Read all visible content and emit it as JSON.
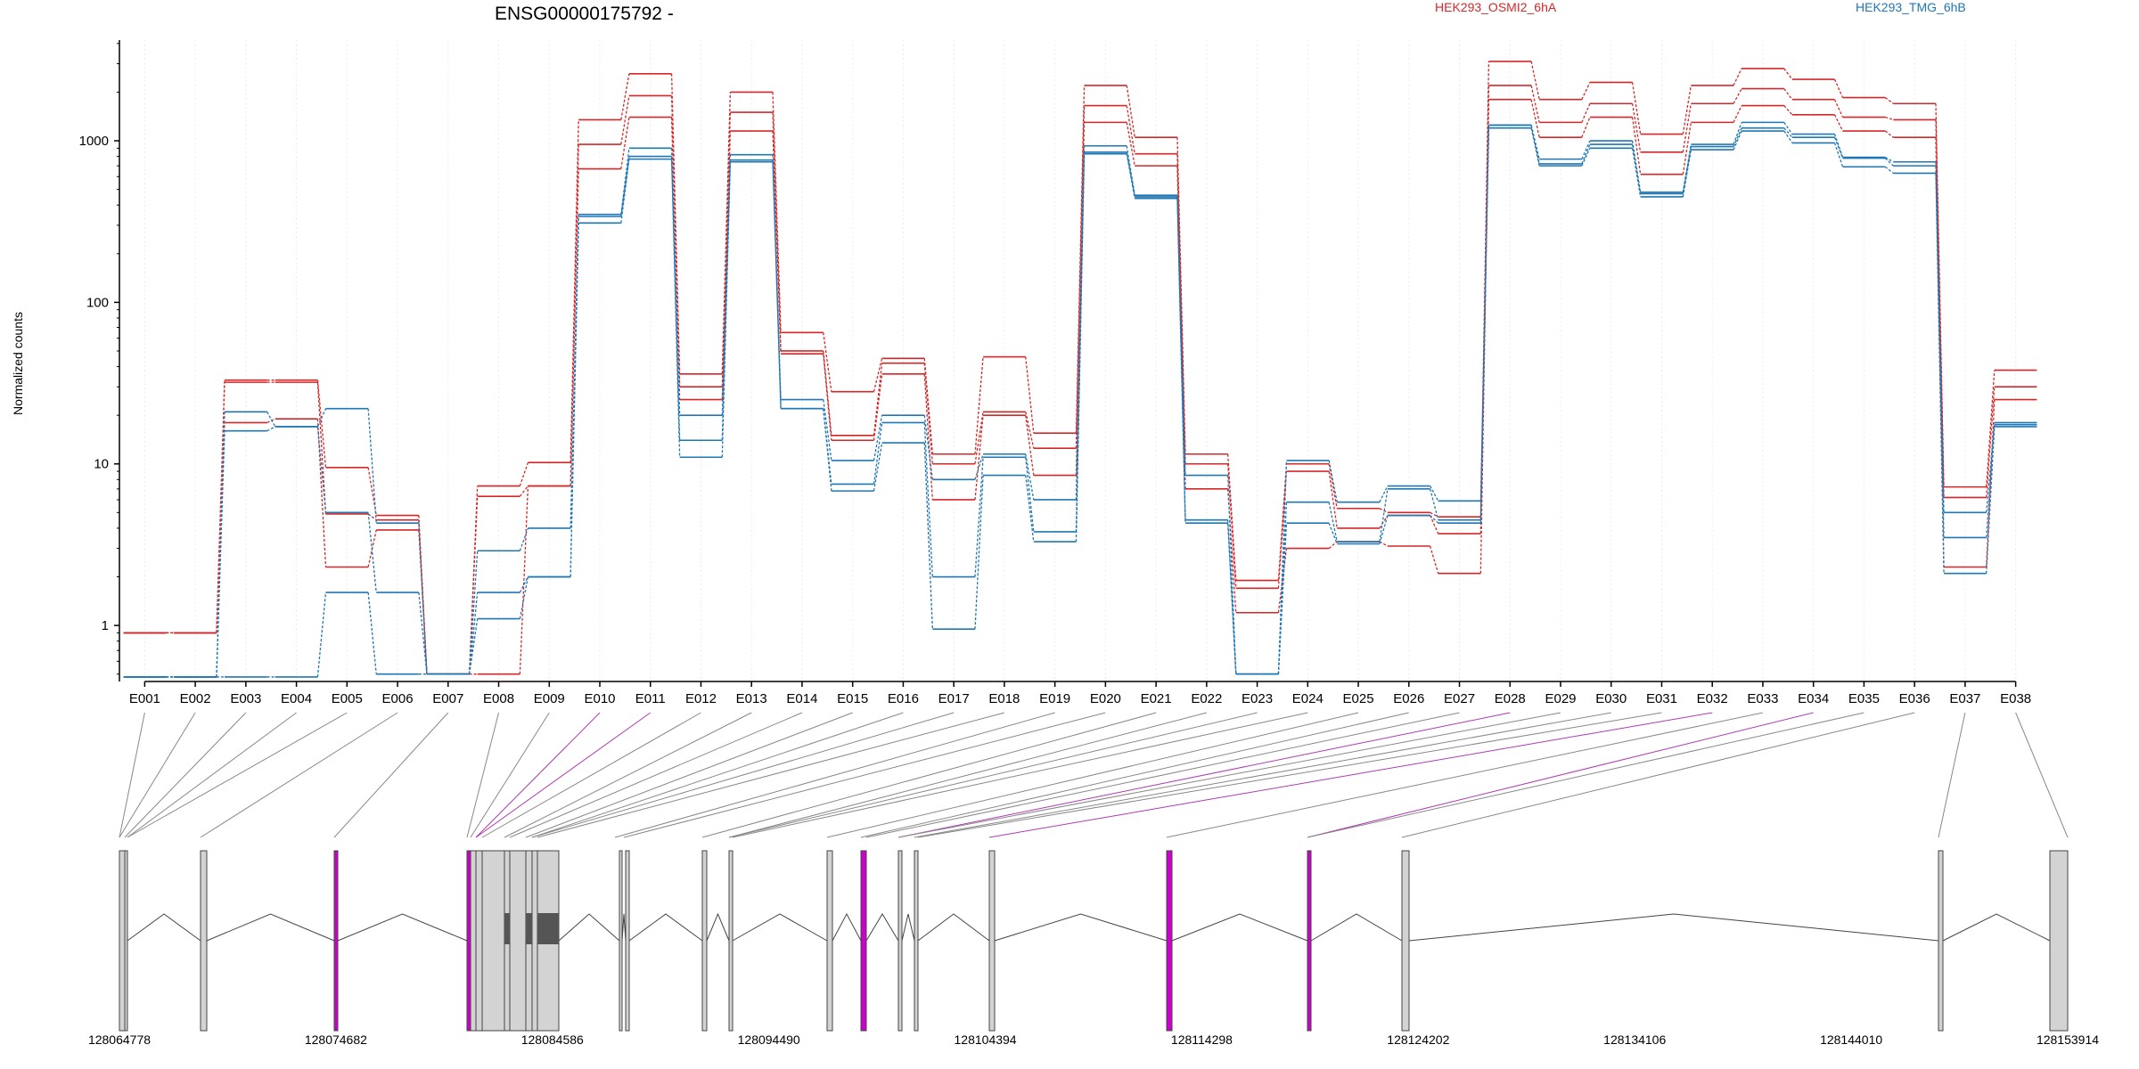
{
  "chart_data": {
    "type": "line",
    "title": "ENSG00000175792 -",
    "ylabel": "Normalized counts",
    "xlabel": "",
    "yscale": "log",
    "ylim": [
      0.45,
      4200
    ],
    "yticks": [
      1,
      10,
      100,
      1000
    ],
    "ytick_labels": [
      "1",
      "10",
      "100",
      "1000"
    ],
    "grid": "vertical dotted",
    "legend_placement": "top-right",
    "categories": [
      "E001",
      "E002",
      "E003",
      "E004",
      "E005",
      "E006",
      "E007",
      "E008",
      "E009",
      "E010",
      "E011",
      "E012",
      "E013",
      "E014",
      "E015",
      "E016",
      "E017",
      "E018",
      "E019",
      "E020",
      "E021",
      "E022",
      "E023",
      "E024",
      "E025",
      "E026",
      "E027",
      "E028",
      "E029",
      "E030",
      "E031",
      "E032",
      "E033",
      "E034",
      "E035",
      "E036",
      "E037",
      "E038"
    ],
    "series": [
      {
        "name": "HEK293_OSMI2_6hA",
        "color": "#d62728",
        "values": [
          0.9,
          0.9,
          33,
          33,
          9.5,
          4.8,
          0.5,
          7.3,
          10.2,
          1350,
          2600,
          36,
          2000,
          65,
          28,
          45,
          11.5,
          46,
          15.5,
          2200,
          1050,
          11.5,
          1.9,
          10,
          5.3,
          5,
          4.7,
          3100,
          1800,
          2300,
          1100,
          2200,
          2800,
          2400,
          1850,
          1700,
          7.2,
          38
        ]
      },
      {
        "name": "",
        "color": "#d62728",
        "values": [
          0.9,
          0.9,
          32,
          32,
          4.9,
          4.5,
          0.5,
          6.3,
          7.3,
          950,
          1900,
          30,
          1500,
          50,
          15,
          42,
          10,
          21,
          12.5,
          1650,
          830,
          10,
          1.7,
          9,
          4,
          4.8,
          3.7,
          2200,
          1300,
          1700,
          850,
          1700,
          2100,
          1800,
          1400,
          1350,
          6.2,
          30
        ]
      },
      {
        "name": "",
        "color": "#d62728",
        "values": [
          0.9,
          0.9,
          18,
          19,
          2.3,
          3.9,
          0.5,
          0.5,
          7.3,
          670,
          1400,
          25,
          1150,
          48,
          14,
          36,
          6,
          20,
          8.5,
          1300,
          700,
          7,
          1.2,
          3,
          3.3,
          3.1,
          2.1,
          1800,
          1050,
          1400,
          620,
          1300,
          1650,
          1450,
          1150,
          1050,
          2.3,
          25
        ]
      },
      {
        "name": "HEK293_TMG_6hB",
        "color": "#1f77b4",
        "values": [
          0.48,
          0.48,
          21,
          17,
          22,
          4.3,
          0.5,
          2.9,
          4,
          350,
          900,
          20,
          820,
          25,
          10.5,
          20,
          8,
          11.5,
          6,
          930,
          460,
          8.5,
          0.5,
          10.5,
          5.8,
          7.3,
          5.9,
          1250,
          770,
          1000,
          480,
          950,
          1300,
          1100,
          790,
          740,
          5,
          18
        ]
      },
      {
        "name": "",
        "color": "#1f77b4",
        "values": [
          0.48,
          0.48,
          16,
          17,
          5,
          1.6,
          0.5,
          1.6,
          2,
          340,
          800,
          14,
          760,
          22,
          7.5,
          18,
          2,
          11,
          3.8,
          850,
          450,
          4.5,
          0.5,
          5.8,
          3.3,
          7,
          4.5,
          1250,
          720,
          950,
          470,
          920,
          1200,
          1050,
          780,
          700,
          3.5,
          17.5
        ]
      },
      {
        "name": "",
        "color": "#1f77b4",
        "values": [
          0.48,
          0.48,
          0.48,
          0.48,
          1.6,
          0.5,
          0.5,
          1.1,
          2,
          310,
          770,
          11,
          740,
          22,
          6.8,
          13.5,
          0.95,
          8.5,
          3.3,
          830,
          440,
          4.3,
          0.5,
          4.3,
          3.2,
          4.8,
          4.3,
          1200,
          700,
          900,
          450,
          880,
          1150,
          970,
          690,
          630,
          2.1,
          17
        ]
      }
    ]
  },
  "gene_model": {
    "coordinate_labels": [
      "128064778",
      "128074682",
      "128084586",
      "128094490",
      "128104394",
      "128114298",
      "128124202",
      "128134106",
      "128144010",
      "128153914"
    ],
    "highlight_color": "#cc00cc",
    "exon_color": "#d3d3d3"
  }
}
